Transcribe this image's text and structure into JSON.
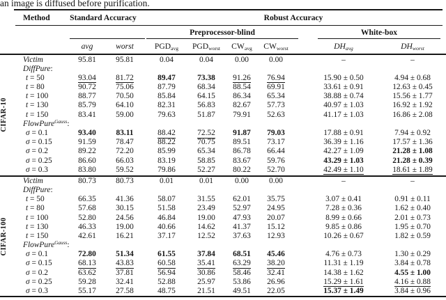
{
  "caption": "an image is diffused before purification.",
  "header": {
    "method": "Method",
    "standard": "Standard Accuracy",
    "robust": "Robust Accuracy",
    "pre_blind": "Preprocessor-blind",
    "white_box": "White-box",
    "cols": [
      {
        "m": "avg"
      },
      {
        "m": "worst"
      },
      {
        "b": "PGD",
        "sub": "avg"
      },
      {
        "b": "PGD",
        "sub": "worst"
      },
      {
        "b": "CW",
        "sub": "avg"
      },
      {
        "b": "CW",
        "sub": "worst"
      },
      {
        "mi": "DH",
        "sub": "avg"
      },
      {
        "mi": "DH",
        "sub": "worst"
      }
    ]
  },
  "sections": [
    {
      "group": "CIFAR-10",
      "rows": [
        {
          "label": {
            "m": "Victim",
            "r": ""
          },
          "cells": [
            [
              "95.81",
              ""
            ],
            [
              "95.81",
              ""
            ],
            [
              "0.04",
              ""
            ],
            [
              "0.04",
              ""
            ],
            [
              "0.00",
              ""
            ],
            [
              "0.00",
              ""
            ],
            [
              "–",
              ""
            ],
            [
              "–",
              ""
            ]
          ]
        },
        {
          "label": {
            "m": "DiffPure",
            "r": ":"
          },
          "cells": []
        },
        {
          "label": {
            "m": "t",
            "r": " = 50",
            "indent": true
          },
          "cells": [
            [
              "93.04",
              "u"
            ],
            [
              "81.72",
              "u"
            ],
            [
              "89.47",
              "b"
            ],
            [
              "73.38",
              "b"
            ],
            [
              "91.26",
              "u"
            ],
            [
              "76.94",
              "u"
            ],
            [
              "15.90 ± 0.50",
              ""
            ],
            [
              "4.94 ± 0.68",
              ""
            ]
          ]
        },
        {
          "label": {
            "m": "t",
            "r": " = 80",
            "indent": true
          },
          "cells": [
            [
              "90.72",
              ""
            ],
            [
              "75.06",
              ""
            ],
            [
              "87.79",
              ""
            ],
            [
              "68.34",
              ""
            ],
            [
              "88.54",
              ""
            ],
            [
              "69.91",
              ""
            ],
            [
              "33.61 ± 0.91",
              ""
            ],
            [
              "12.63 ± 0.45",
              ""
            ]
          ]
        },
        {
          "label": {
            "m": "t",
            "r": " = 100",
            "indent": true
          },
          "cells": [
            [
              "88.77",
              ""
            ],
            [
              "70.50",
              ""
            ],
            [
              "85.84",
              ""
            ],
            [
              "64.15",
              ""
            ],
            [
              "86.34",
              ""
            ],
            [
              "65.34",
              ""
            ],
            [
              "38.88 ± 0.74",
              ""
            ],
            [
              "15.56 ± 1.77",
              ""
            ]
          ]
        },
        {
          "label": {
            "m": "t",
            "r": " = 130",
            "indent": true
          },
          "cells": [
            [
              "85.79",
              ""
            ],
            [
              "64.10",
              ""
            ],
            [
              "82.31",
              ""
            ],
            [
              "56.83",
              ""
            ],
            [
              "82.67",
              ""
            ],
            [
              "57.73",
              ""
            ],
            [
              "40.97 ± 1.03",
              ""
            ],
            [
              "16.92 ± 1.92",
              ""
            ]
          ]
        },
        {
          "label": {
            "m": "t",
            "r": " = 150",
            "indent": true
          },
          "cells": [
            [
              "83.41",
              ""
            ],
            [
              "59.00",
              ""
            ],
            [
              "79.63",
              ""
            ],
            [
              "51.87",
              ""
            ],
            [
              "79.91",
              ""
            ],
            [
              "52.63",
              ""
            ],
            [
              "41.17 ± 1.03",
              ""
            ],
            [
              "16.86 ± 2.08",
              ""
            ]
          ]
        },
        {
          "label": {
            "m": "FlowPure",
            "sup": "Gauss",
            "r": ":"
          },
          "cells": []
        },
        {
          "label": {
            "m": "σ",
            "r": " = 0.1",
            "indent": true
          },
          "cells": [
            [
              "93.40",
              "b"
            ],
            [
              "83.11",
              "b"
            ],
            [
              "88.42",
              "u"
            ],
            [
              "72.52",
              "u"
            ],
            [
              "91.87",
              "b"
            ],
            [
              "79.03",
              "b"
            ],
            [
              "17.88 ± 0.91",
              ""
            ],
            [
              "7.94 ± 0.92",
              ""
            ]
          ]
        },
        {
          "label": {
            "m": "σ",
            "r": " = 0.15",
            "indent": true
          },
          "cells": [
            [
              "91.59",
              ""
            ],
            [
              "78.47",
              ""
            ],
            [
              "88.22",
              ""
            ],
            [
              "70.75",
              ""
            ],
            [
              "89.51",
              ""
            ],
            [
              "73.17",
              ""
            ],
            [
              "36.39 ± 1.16",
              ""
            ],
            [
              "17.57 ± 1.36",
              ""
            ]
          ]
        },
        {
          "label": {
            "m": "σ",
            "r": " = 0.2",
            "indent": true
          },
          "cells": [
            [
              "89.22",
              ""
            ],
            [
              "72.20",
              ""
            ],
            [
              "85.99",
              ""
            ],
            [
              "65.34",
              ""
            ],
            [
              "86.78",
              ""
            ],
            [
              "66.44",
              ""
            ],
            [
              "42.27 ± 1.09",
              ""
            ],
            [
              "21.28 ± 1.08",
              "b"
            ]
          ]
        },
        {
          "label": {
            "m": "σ",
            "r": " = 0.25",
            "indent": true
          },
          "cells": [
            [
              "86.60",
              ""
            ],
            [
              "66.03",
              ""
            ],
            [
              "83.19",
              ""
            ],
            [
              "58.85",
              ""
            ],
            [
              "83.67",
              ""
            ],
            [
              "59.76",
              ""
            ],
            [
              "43.29 ± 1.03",
              "b"
            ],
            [
              "21.28 ± 0.39",
              "b"
            ]
          ]
        },
        {
          "label": {
            "m": "σ",
            "r": " = 0.3",
            "indent": true
          },
          "cells": [
            [
              "83.80",
              ""
            ],
            [
              "59.52",
              ""
            ],
            [
              "79.86",
              ""
            ],
            [
              "52.27",
              ""
            ],
            [
              "80.22",
              ""
            ],
            [
              "52.70",
              ""
            ],
            [
              "42.49 ± 1.10",
              "u"
            ],
            [
              "18.61 ± 1.89",
              "u"
            ]
          ]
        }
      ]
    },
    {
      "group": "CIFAR-100",
      "rows": [
        {
          "label": {
            "m": "Victim",
            "r": ""
          },
          "cells": [
            [
              "80.73",
              ""
            ],
            [
              "80.73",
              ""
            ],
            [
              "0.01",
              ""
            ],
            [
              "0.01",
              ""
            ],
            [
              "0.00",
              ""
            ],
            [
              "0.00",
              ""
            ],
            [
              "–",
              ""
            ],
            [
              "–",
              ""
            ]
          ]
        },
        {
          "label": {
            "m": "DiffPure",
            "r": ":"
          },
          "cells": []
        },
        {
          "label": {
            "m": "t",
            "r": " = 50",
            "indent": true
          },
          "cells": [
            [
              "66.35",
              ""
            ],
            [
              "41.36",
              ""
            ],
            [
              "58.07",
              ""
            ],
            [
              "31.55",
              ""
            ],
            [
              "62.01",
              ""
            ],
            [
              "35.75",
              ""
            ],
            [
              "3.07 ± 0.41",
              ""
            ],
            [
              "0.91 ± 0.11",
              ""
            ]
          ]
        },
        {
          "label": {
            "m": "t",
            "r": " = 80",
            "indent": true
          },
          "cells": [
            [
              "57.68",
              ""
            ],
            [
              "30.15",
              ""
            ],
            [
              "51.58",
              ""
            ],
            [
              "23.49",
              ""
            ],
            [
              "52.97",
              ""
            ],
            [
              "24.95",
              ""
            ],
            [
              "7.28 ± 0.36",
              ""
            ],
            [
              "1.62 ± 0.40",
              ""
            ]
          ]
        },
        {
          "label": {
            "m": "t",
            "r": " = 100",
            "indent": true
          },
          "cells": [
            [
              "52.80",
              ""
            ],
            [
              "24.56",
              ""
            ],
            [
              "46.84",
              ""
            ],
            [
              "19.00",
              ""
            ],
            [
              "47.93",
              ""
            ],
            [
              "20.07",
              ""
            ],
            [
              "8.99 ± 0.66",
              ""
            ],
            [
              "2.01 ± 0.73",
              ""
            ]
          ]
        },
        {
          "label": {
            "m": "t",
            "r": " = 130",
            "indent": true
          },
          "cells": [
            [
              "46.33",
              ""
            ],
            [
              "19.00",
              ""
            ],
            [
              "40.66",
              ""
            ],
            [
              "14.62",
              ""
            ],
            [
              "41.37",
              ""
            ],
            [
              "15.12",
              ""
            ],
            [
              "9.85 ± 0.86",
              ""
            ],
            [
              "1.95 ± 0.70",
              ""
            ]
          ]
        },
        {
          "label": {
            "m": "t",
            "r": " = 150",
            "indent": true
          },
          "cells": [
            [
              "42.61",
              ""
            ],
            [
              "16.21",
              ""
            ],
            [
              "37.17",
              ""
            ],
            [
              "12.52",
              ""
            ],
            [
              "37.63",
              ""
            ],
            [
              "12.93",
              ""
            ],
            [
              "10.26 ± 0.67",
              ""
            ],
            [
              "1.82 ± 0.59",
              ""
            ]
          ]
        },
        {
          "label": {
            "m": "FlowPure",
            "sup": "Gauss",
            "r": ":"
          },
          "cells": []
        },
        {
          "label": {
            "m": "σ",
            "r": " = 0.1",
            "indent": true
          },
          "cells": [
            [
              "72.80",
              "b"
            ],
            [
              "51.34",
              "b"
            ],
            [
              "61.55",
              "b"
            ],
            [
              "37.84",
              "b"
            ],
            [
              "68.51",
              "b"
            ],
            [
              "45.46",
              "b"
            ],
            [
              "4.76 ± 0.73",
              ""
            ],
            [
              "1.30 ± 0.29",
              ""
            ]
          ]
        },
        {
          "label": {
            "m": "σ",
            "r": " = 0.15",
            "indent": true
          },
          "cells": [
            [
              "68.13",
              "u"
            ],
            [
              "43.83",
              "u"
            ],
            [
              "60.58",
              "u"
            ],
            [
              "35.41",
              "u"
            ],
            [
              "63.29",
              "u"
            ],
            [
              "38.20",
              "u"
            ],
            [
              "11.31 ± 1.19",
              ""
            ],
            [
              "3.84 ± 0.78",
              ""
            ]
          ]
        },
        {
          "label": {
            "m": "σ",
            "r": " = 0.2",
            "indent": true
          },
          "cells": [
            [
              "63.62",
              ""
            ],
            [
              "37.81",
              ""
            ],
            [
              "56.94",
              ""
            ],
            [
              "30.86",
              ""
            ],
            [
              "58.46",
              ""
            ],
            [
              "32.41",
              ""
            ],
            [
              "14.38 ± 1.62",
              ""
            ],
            [
              "4.55 ± 1.00",
              "b"
            ]
          ]
        },
        {
          "label": {
            "m": "σ",
            "r": " = 0.25",
            "indent": true
          },
          "cells": [
            [
              "59.28",
              ""
            ],
            [
              "32.41",
              ""
            ],
            [
              "52.88",
              ""
            ],
            [
              "25.97",
              ""
            ],
            [
              "53.86",
              ""
            ],
            [
              "26.96",
              ""
            ],
            [
              "15.29 ± 1.61",
              "u"
            ],
            [
              "4.16 ± 0.88",
              "u"
            ]
          ]
        },
        {
          "label": {
            "m": "σ",
            "r": " = 0.3",
            "indent": true
          },
          "cells": [
            [
              "55.17",
              ""
            ],
            [
              "27.58",
              ""
            ],
            [
              "48.75",
              ""
            ],
            [
              "21.51",
              ""
            ],
            [
              "49.51",
              ""
            ],
            [
              "22.05",
              ""
            ],
            [
              "15.37 ± 1.49",
              "b"
            ],
            [
              "3.84 ± 0.96",
              ""
            ]
          ]
        }
      ]
    }
  ]
}
